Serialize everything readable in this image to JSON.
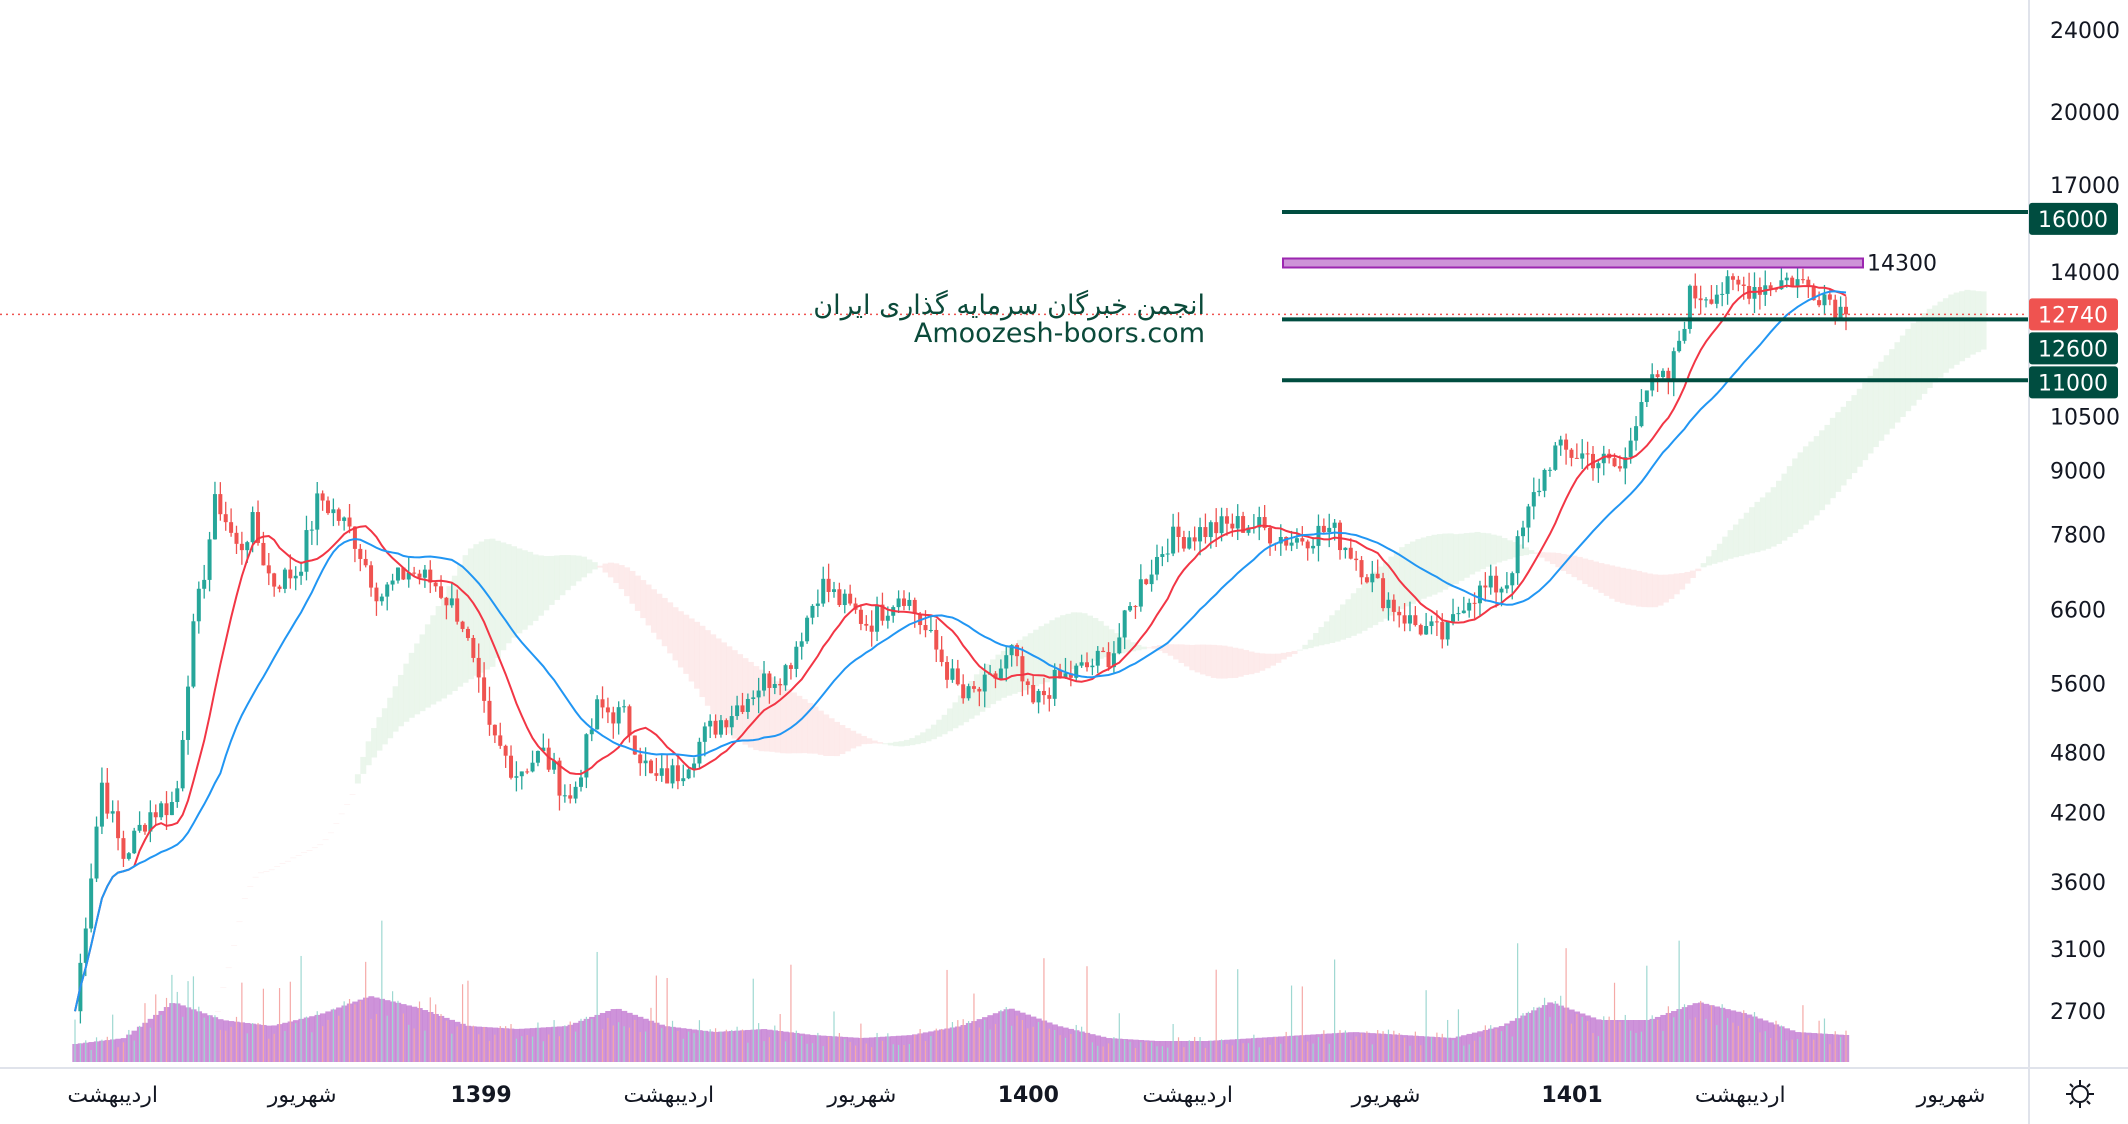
{
  "watermark": {
    "line1": "انجمن خبرگان سرمایه گذاری ایران",
    "line2": "Amoozesh-boors.com"
  },
  "settings_icon": "gear-icon",
  "colors": {
    "up": "#26a69a",
    "down": "#ef5350",
    "level": "#004d40",
    "zone_fill": "#ce93d8",
    "zone_border": "#9c27b0",
    "ma_fast": "#f23645",
    "ma_slow": "#2196f3",
    "volume": "#b45cc4"
  },
  "chart_data": {
    "type": "candlestick",
    "scale": "log",
    "y_ticks": [
      "24000",
      "20000",
      "17000",
      "14000",
      "10500",
      "9000",
      "7800",
      "6600",
      "5600",
      "4800",
      "4200",
      "3600",
      "3100",
      "2700"
    ],
    "x_labels": [
      {
        "label": "اردیبهشت",
        "pos": 0.01,
        "bold": false
      },
      {
        "label": "شهریور",
        "pos": 0.117,
        "bold": false
      },
      {
        "label": "1399",
        "pos": 0.218,
        "bold": true
      },
      {
        "label": "اردیبهشت",
        "pos": 0.324,
        "bold": false
      },
      {
        "label": "شهریور",
        "pos": 0.433,
        "bold": false
      },
      {
        "label": "1400",
        "pos": 0.527,
        "bold": true
      },
      {
        "label": "اردیبهشت",
        "pos": 0.617,
        "bold": false
      },
      {
        "label": "شهریور",
        "pos": 0.729,
        "bold": false
      },
      {
        "label": "1401",
        "pos": 0.834,
        "bold": true
      },
      {
        "label": "اردیبهشت",
        "pos": 0.929,
        "bold": false
      },
      {
        "label": "شهریور",
        "pos": 1.048,
        "bold": false
      }
    ],
    "price_path": [
      [
        0,
        2700
      ],
      [
        0.015,
        4500
      ],
      [
        0.027,
        3800
      ],
      [
        0.042,
        4200
      ],
      [
        0.057,
        4300
      ],
      [
        0.065,
        6000
      ],
      [
        0.08,
        8500
      ],
      [
        0.092,
        7500
      ],
      [
        0.1,
        8000
      ],
      [
        0.111,
        7000
      ],
      [
        0.126,
        7200
      ],
      [
        0.138,
        8500
      ],
      [
        0.157,
        7800
      ],
      [
        0.172,
        6800
      ],
      [
        0.188,
        7200
      ],
      [
        0.203,
        7000
      ],
      [
        0.218,
        6500
      ],
      [
        0.234,
        5000
      ],
      [
        0.249,
        4600
      ],
      [
        0.264,
        4800
      ],
      [
        0.28,
        4300
      ],
      [
        0.295,
        5300
      ],
      [
        0.31,
        5200
      ],
      [
        0.326,
        4500
      ],
      [
        0.341,
        4600
      ],
      [
        0.356,
        5000
      ],
      [
        0.372,
        5300
      ],
      [
        0.387,
        5600
      ],
      [
        0.402,
        5800
      ],
      [
        0.421,
        7000
      ],
      [
        0.433,
        6700
      ],
      [
        0.448,
        6400
      ],
      [
        0.467,
        6900
      ],
      [
        0.487,
        6000
      ],
      [
        0.502,
        5400
      ],
      [
        0.517,
        5600
      ],
      [
        0.529,
        6000
      ],
      [
        0.54,
        5300
      ],
      [
        0.552,
        5600
      ],
      [
        0.571,
        5800
      ],
      [
        0.586,
        6000
      ],
      [
        0.602,
        7000
      ],
      [
        0.617,
        7700
      ],
      [
        0.64,
        7900
      ],
      [
        0.663,
        8000
      ],
      [
        0.686,
        7700
      ],
      [
        0.709,
        7900
      ],
      [
        0.724,
        7400
      ],
      [
        0.739,
        6800
      ],
      [
        0.755,
        6400
      ],
      [
        0.774,
        6200
      ],
      [
        0.785,
        6800
      ],
      [
        0.808,
        7000
      ],
      [
        0.824,
        8500
      ],
      [
        0.835,
        9400
      ],
      [
        0.854,
        9300
      ],
      [
        0.874,
        9000
      ],
      [
        0.885,
        10800
      ],
      [
        0.9,
        11000
      ],
      [
        0.912,
        13300
      ],
      [
        0.935,
        13500
      ],
      [
        0.954,
        13600
      ],
      [
        0.969,
        13800
      ],
      [
        0.989,
        13300
      ],
      [
        1.0,
        12700
      ]
    ],
    "volume_envelope": [
      0.2,
      0.3,
      0.9,
      0.6,
      0.5,
      0.7,
      1.0,
      0.8,
      0.5,
      0.45,
      0.5,
      0.8,
      0.5,
      0.4,
      0.45,
      0.35,
      0.3,
      0.35,
      0.5,
      0.8,
      0.5,
      0.3,
      0.25,
      0.25,
      0.3,
      0.35,
      0.4,
      0.35,
      0.3,
      0.5,
      0.9,
      0.6,
      0.6,
      0.9,
      0.7,
      0.4,
      0.35
    ],
    "last_price": {
      "value": 12740,
      "label": "12740"
    },
    "levels": [
      {
        "value": 16000,
        "label": "16000"
      },
      {
        "value": 12600,
        "label": "12600"
      },
      {
        "value": 11000,
        "label": "11000"
      }
    ],
    "resistance_zone": {
      "value": 14300,
      "label": "14300"
    },
    "indicators": [
      "MA fast (red)",
      "MA slow (blue)",
      "Ichimoku cloud",
      "Volume"
    ]
  }
}
